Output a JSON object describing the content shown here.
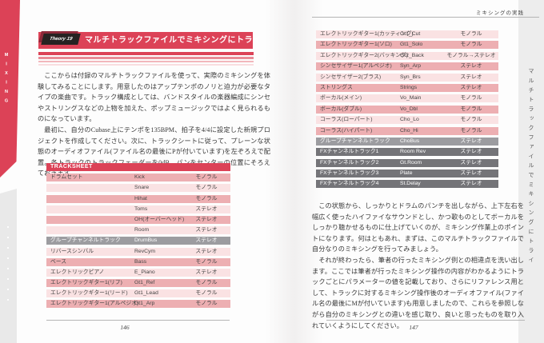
{
  "running_header": {
    "section_title": "ミキシングの実践"
  },
  "chapter_tab": {
    "label": "MIXING"
  },
  "right_sidebar": {
    "vertical_title": "マルチトラックファイルでミキシングにトライ"
  },
  "theory": {
    "badge": "Theory 19",
    "title": "マルチトラックファイルでミキシングにトライ"
  },
  "left_page": {
    "page_number": "146",
    "paragraph1": "ここからは付録のマルチトラックファイルを使って、実際のミキシングを体験してみることにします。用意したのはアップテンポのノリと迫力が必要なタイプの楽曲です。トラック構成としては、バンドスタイルの楽器編成にシンセやストリングスなどの上物を加えた、ポップミュージックではよく見られるものになっています。",
    "paragraph2": "最初に、自分のCubase上にテンポを135BPM、拍子を4/4に設定した新規プロジェクトを作成してください。次に、トラックシートに従って、プレーンな状態のオーディオファイル(ファイル名の最後にPが付いています)を左ぞろえで配置。各トラックのトラックフェーダーを0dB、パンをセンターの位置にそろえておきます。"
  },
  "right_page": {
    "page_number": "147",
    "paragraph1": "この状態から、しっかりとドラムのパンチを出しながら、上下左右を幅広く使ったハイファイなサウンドとし、かつ歌ものとしてボーカルをしっかり聴かせるものに仕上げていくのが、ミキシング作業上のポイントになります。何はともあれ、まずは、このマルチトラックファイルで自分なりのミキシングを行ってみましょう。",
    "paragraph2": "それが終わったら、筆者の行ったミキシング例との相違点を洗い出します。ここでは筆者が行ったミキシング操作の内容がわかるようにトラックごとにパラメーターの値を記載しており、さらにリファレンス用として、トラックに対するミキシング操作後のオーディオファイル(ファイル名の最後にMが付いています)も用意しましたので、これらを参照しながら自分のミキシングとの違いを感じ取り、良いと思ったものを取り入れていくようにしてください。"
  },
  "tracksheet": {
    "header": "TRACKSHEET",
    "left_rows": [
      {
        "category": "ドラムセット",
        "name": "Kick",
        "type": "モノラル",
        "style": "dark"
      },
      {
        "category": "",
        "name": "Snare",
        "type": "モノラル",
        "style": "light"
      },
      {
        "category": "",
        "name": "Hihat",
        "type": "モノラル",
        "style": "dark"
      },
      {
        "category": "",
        "name": "Toms",
        "type": "ステレオ",
        "style": "light"
      },
      {
        "category": "",
        "name": "OH(オーバーヘッド)",
        "type": "ステレオ",
        "style": "dark"
      },
      {
        "category": "",
        "name": "Room",
        "type": "ステレオ",
        "style": "light"
      },
      {
        "category": "グループチャンネルトラック",
        "name": "DrumBus",
        "type": "ステレオ",
        "style": "group"
      },
      {
        "category": "リバースシンバル",
        "name": "RevCym",
        "type": "ステレオ",
        "style": "light"
      },
      {
        "category": "ベース",
        "name": "Bass",
        "type": "モノラル",
        "style": "dark"
      },
      {
        "category": "エレクトリックピアノ",
        "name": "E_Piano",
        "type": "ステレオ",
        "style": "light"
      },
      {
        "category": "エレクトリックギター1(リフ)",
        "name": "Gt1_Ref",
        "type": "モノラル",
        "style": "dark"
      },
      {
        "category": "エレクトリックギター1(リード)",
        "name": "Gt1_Lead",
        "type": "モノラル",
        "style": "light"
      },
      {
        "category": "エレクトリックギター1(アルペジオ)",
        "name": "Gt1_Arp",
        "type": "モノラル",
        "style": "dark"
      }
    ],
    "right_rows": [
      {
        "category": "エレクトリックギター1(カッティング)",
        "name": "Gt1_Cut",
        "type": "モノラル",
        "style": "light"
      },
      {
        "category": "エレクトリックギター1(ソロ)",
        "name": "Gt1_Solo",
        "type": "モノラル",
        "style": "dark"
      },
      {
        "category": "エレクトリックギター2(バッキング)",
        "name": "Gt2_Back",
        "type": "モノラル→ステレオ",
        "style": "light"
      },
      {
        "category": "シンセサイザー1(アルペジオ)",
        "name": "Syn_Arp",
        "type": "ステレオ",
        "style": "dark"
      },
      {
        "category": "シンセサイザー2(ブラス)",
        "name": "Syn_Brs",
        "type": "ステレオ",
        "style": "light"
      },
      {
        "category": "ストリングス",
        "name": "Strings",
        "type": "ステレオ",
        "style": "dark"
      },
      {
        "category": "ボーカル(メイン)",
        "name": "Vo_Main",
        "type": "モノラル",
        "style": "light"
      },
      {
        "category": "ボーカル(ダブル)",
        "name": "Vo_Dbl",
        "type": "モノラル",
        "style": "dark"
      },
      {
        "category": "コーラス(ローパート)",
        "name": "Cho_Lo",
        "type": "モノラル",
        "style": "light"
      },
      {
        "category": "コーラス(ハイパート)",
        "name": "Cho_Hi",
        "type": "モノラル",
        "style": "dark"
      },
      {
        "category": "グループチャンネルトラック",
        "name": "ChoBus",
        "type": "ステレオ",
        "style": "group"
      },
      {
        "category": "FXチャンネルトラック1",
        "name": "Room Rev",
        "type": "ステレオ",
        "style": "fx"
      },
      {
        "category": "FXチャンネルトラック2",
        "name": "Gt.Room",
        "type": "ステレオ",
        "style": "fx"
      },
      {
        "category": "FXチャンネルトラック3",
        "name": "Plate",
        "type": "ステレオ",
        "style": "fx"
      },
      {
        "category": "FXチャンネルトラック4",
        "name": "St.Delay",
        "type": "ステレオ",
        "style": "fx"
      }
    ]
  },
  "colors": {
    "accent_red": "#dc4257",
    "row_pink_dark": "#edafb2",
    "row_pink_light": "#fae2e3",
    "row_gray_group": "#9c9ca0",
    "row_gray_fx": "#747478"
  }
}
